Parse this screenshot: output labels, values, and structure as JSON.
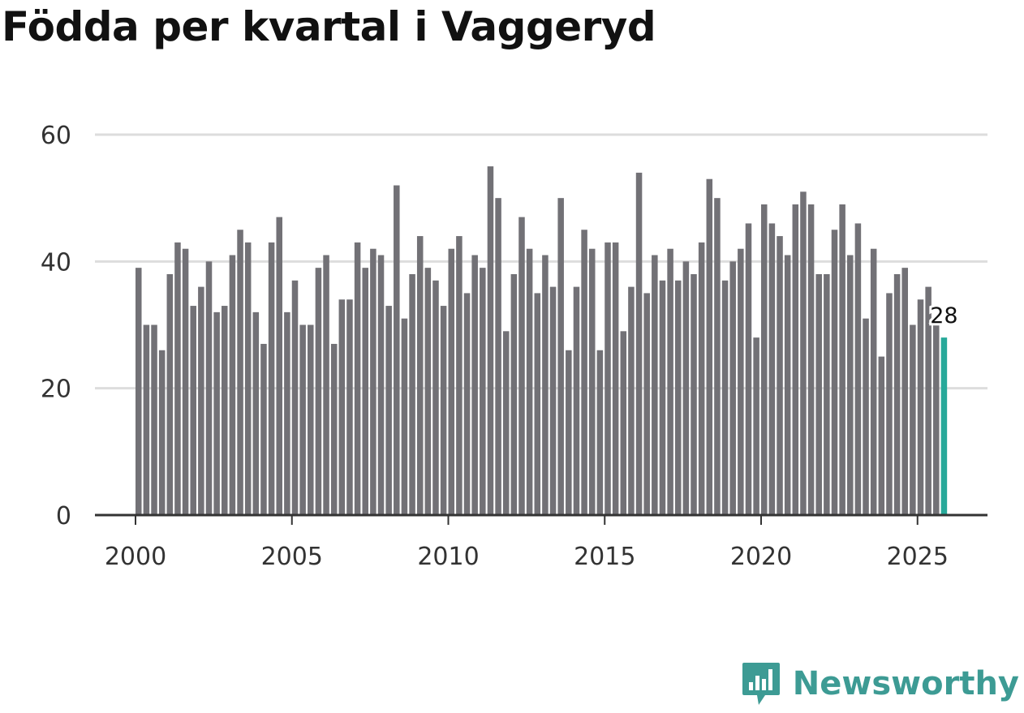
{
  "chart_data": {
    "type": "bar",
    "title": "Födda per kvartal i Vaggeryd",
    "xlabel": "",
    "ylabel": "",
    "ylim": [
      0,
      60
    ],
    "xlim": [
      2000,
      2026
    ],
    "grid": true,
    "y_ticks": [
      0,
      20,
      40,
      60
    ],
    "x_ticks": [
      2000,
      2005,
      2010,
      2015,
      2020,
      2025
    ],
    "start_year": 2000,
    "quarters_per_year": 4,
    "values": [
      39,
      30,
      30,
      26,
      38,
      43,
      42,
      33,
      36,
      40,
      32,
      33,
      41,
      45,
      43,
      32,
      27,
      43,
      47,
      32,
      37,
      30,
      30,
      39,
      41,
      27,
      34,
      34,
      43,
      39,
      42,
      41,
      33,
      52,
      31,
      38,
      44,
      39,
      37,
      33,
      42,
      44,
      35,
      41,
      39,
      55,
      50,
      29,
      38,
      47,
      42,
      35,
      41,
      36,
      50,
      26,
      36,
      45,
      42,
      26,
      43,
      43,
      29,
      36,
      54,
      35,
      41,
      37,
      42,
      37,
      40,
      38,
      43,
      53,
      50,
      37,
      40,
      42,
      46,
      28,
      49,
      46,
      44,
      41,
      49,
      51,
      49,
      38,
      38,
      45,
      49,
      41,
      46,
      31,
      42,
      25,
      35,
      38,
      39,
      30,
      34,
      36,
      30,
      28
    ],
    "highlight_last": true,
    "last_value_label": "28",
    "colors": {
      "bar": "#727176",
      "highlight": "#27a99a",
      "grid": "#dddddd",
      "axis": "#333333"
    }
  },
  "brand": {
    "name": "Newsworthy",
    "color": "#3d9b94",
    "icon": "newsworthy-logo-icon"
  }
}
